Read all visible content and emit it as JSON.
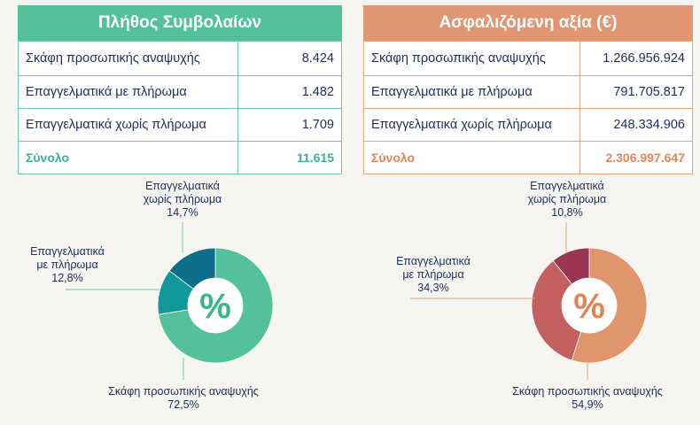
{
  "tables": {
    "contracts": {
      "title": "Πλήθος Συμβολαίων",
      "rows": [
        {
          "label": "Σκάφη προσωπικής αναψυχής",
          "value": "8.424"
        },
        {
          "label": "Επαγγελματικά με πλήρωμα",
          "value": "1.482"
        },
        {
          "label": "Επαγγελματικά χωρίς πλήρωμα",
          "value": "1.709"
        }
      ],
      "total": {
        "label": "Σύνολο",
        "value": "11.615"
      }
    },
    "insured_value": {
      "title": "Ασφαλιζόμενη αξία (€)",
      "rows": [
        {
          "label": "Σκάφη προσωπικής αναψυχής",
          "value": "1.266.956.924"
        },
        {
          "label": "Επαγγελματικά με πλήρωμα",
          "value": "791.705.817"
        },
        {
          "label": "Επαγγελματικά χωρίς πλήρωμα",
          "value": "248.334.906"
        }
      ],
      "total": {
        "label": "Σύνολο",
        "value": "2.306.997.647"
      }
    }
  },
  "center_symbol": "%",
  "colors": {
    "green_header": "#54c19c",
    "orange_header": "#e19570",
    "green_total": "#3db38b",
    "orange_total": "#e08456",
    "text": "#1f2d5a"
  },
  "chart_data": [
    {
      "type": "pie",
      "title": "",
      "slices": [
        {
          "name_lines": [
            "Σκάφη προσωπικής αναψυχής"
          ],
          "value": 72.5,
          "label": "72,5%",
          "color": "#54c19c"
        },
        {
          "name_lines": [
            "Επαγγελματικά",
            "με πλήρωμα"
          ],
          "value": 12.8,
          "label": "12,8%",
          "color": "#11989b"
        },
        {
          "name_lines": [
            "Επαγγελματικά",
            "χωρίς πλήρωμα"
          ],
          "value": 14.7,
          "label": "14,7%",
          "color": "#0f6e8c"
        }
      ],
      "center_color": "#3db38b",
      "leader_color": "#6fcaa8"
    },
    {
      "type": "pie",
      "title": "",
      "slices": [
        {
          "name_lines": [
            "Σκάφη προσωπικής αναψυχής"
          ],
          "value": 54.9,
          "label": "54,9%",
          "color": "#e1956d"
        },
        {
          "name_lines": [
            "Επαγγελματικά",
            "με πλήρωμα"
          ],
          "value": 34.3,
          "label": "34,3%",
          "color": "#c4615e"
        },
        {
          "name_lines": [
            "Επαγγελματικά",
            "χωρίς πλήρωμα"
          ],
          "value": 10.8,
          "label": "10,8%",
          "color": "#9a3553"
        }
      ],
      "center_color": "#e08456",
      "leader_color": "#e6a283"
    }
  ]
}
